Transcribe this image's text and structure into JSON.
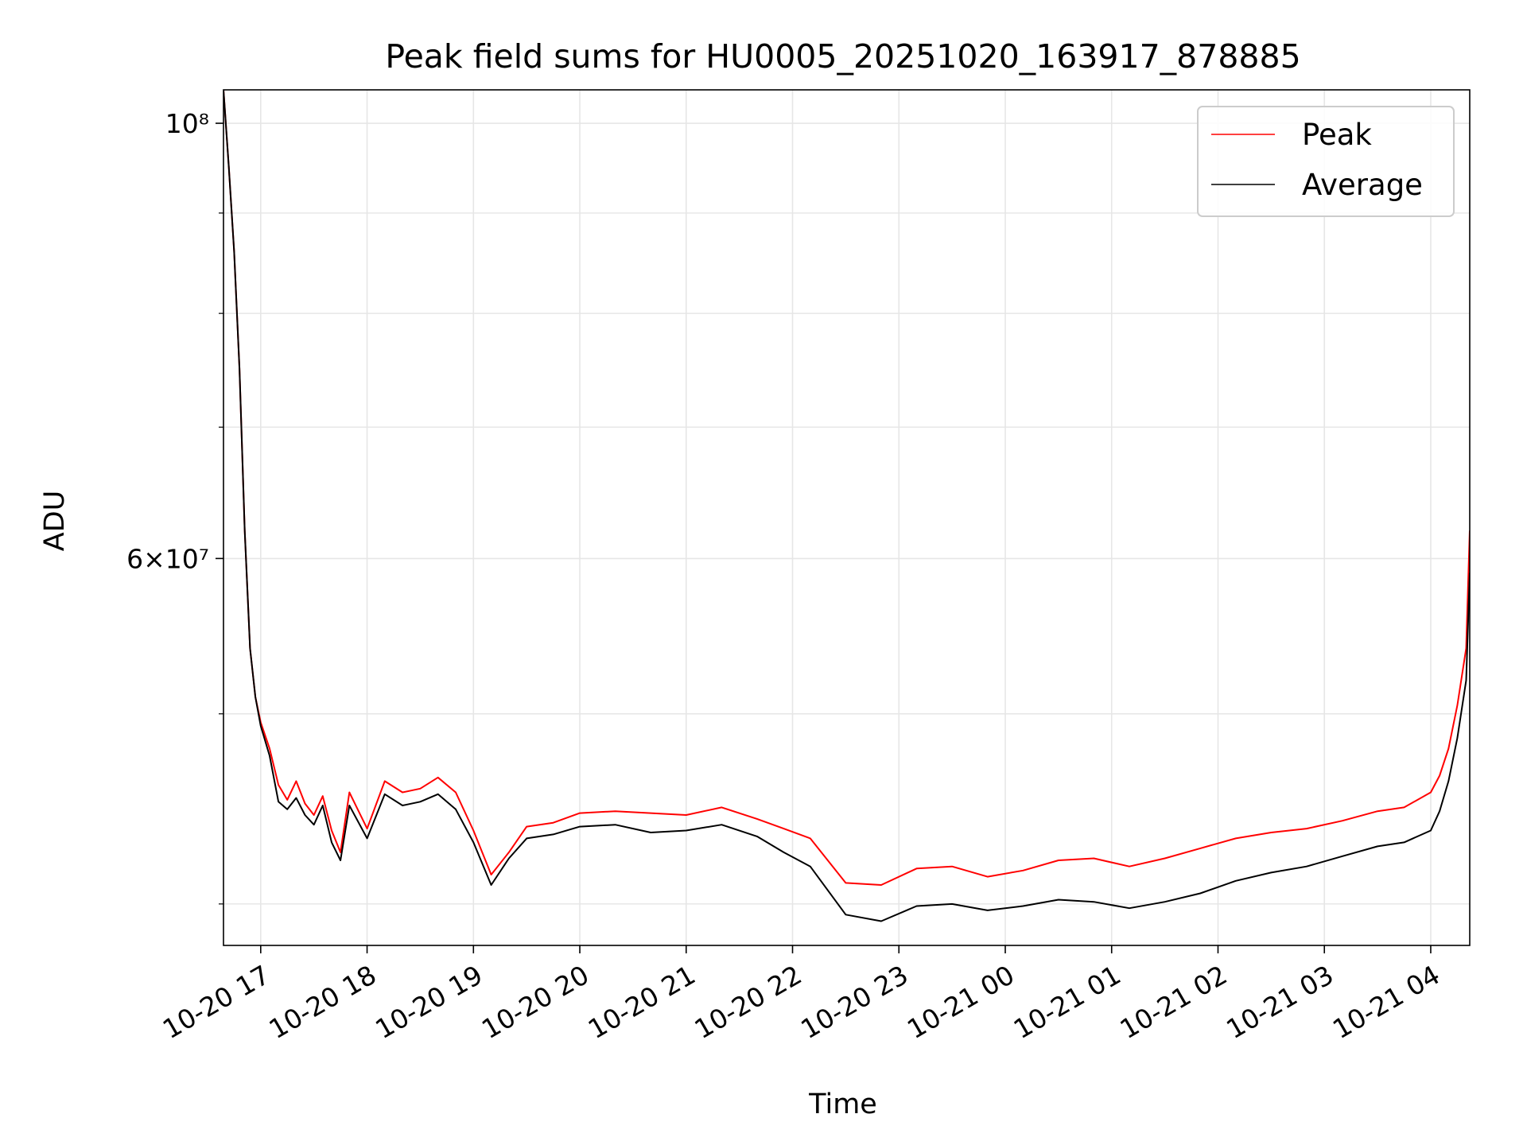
{
  "chart_data": {
    "type": "line",
    "title": "Peak field sums for HU0005_20251020_163917_878885",
    "xlabel": "Time",
    "ylabel": "ADU",
    "y_scale": "log",
    "grid": true,
    "legend_position": "top-right",
    "x_range": [
      "2025-10-20 16:39",
      "2025-10-21 04:22"
    ],
    "ylim": [
      38100000,
      104000000
    ],
    "x_ticks": [
      "10-20 17",
      "10-20 18",
      "10-20 19",
      "10-20 20",
      "10-20 21",
      "10-20 22",
      "10-20 23",
      "10-21 00",
      "10-21 01",
      "10-21 02",
      "10-21 03",
      "10-21 04"
    ],
    "x_tick_times": [
      "2025-10-20 17:00",
      "2025-10-20 18:00",
      "2025-10-20 19:00",
      "2025-10-20 20:00",
      "2025-10-20 21:00",
      "2025-10-20 22:00",
      "2025-10-20 23:00",
      "2025-10-21 00:00",
      "2025-10-21 01:00",
      "2025-10-21 02:00",
      "2025-10-21 03:00",
      "2025-10-21 04:00"
    ],
    "y_tick_values": [
      100000000,
      60000000
    ],
    "y_minor_tick_values": [
      40000000,
      50000000,
      70000000,
      80000000,
      90000000
    ],
    "series": [
      {
        "name": "Peak",
        "color": "#ff0000",
        "x": [
          "2025-10-20 16:39",
          "2025-10-20 16:42",
          "2025-10-20 16:45",
          "2025-10-20 16:48",
          "2025-10-20 16:51",
          "2025-10-20 16:54",
          "2025-10-20 16:57",
          "2025-10-20 17:00",
          "2025-10-20 17:05",
          "2025-10-20 17:10",
          "2025-10-20 17:15",
          "2025-10-20 17:20",
          "2025-10-20 17:25",
          "2025-10-20 17:30",
          "2025-10-20 17:35",
          "2025-10-20 17:40",
          "2025-10-20 17:45",
          "2025-10-20 17:50",
          "2025-10-20 18:00",
          "2025-10-20 18:10",
          "2025-10-20 18:20",
          "2025-10-20 18:30",
          "2025-10-20 18:40",
          "2025-10-20 18:50",
          "2025-10-20 19:00",
          "2025-10-20 19:10",
          "2025-10-20 19:20",
          "2025-10-20 19:30",
          "2025-10-20 19:45",
          "2025-10-20 20:00",
          "2025-10-20 20:20",
          "2025-10-20 20:40",
          "2025-10-20 21:00",
          "2025-10-20 21:20",
          "2025-10-20 21:40",
          "2025-10-20 21:55",
          "2025-10-20 22:10",
          "2025-10-20 22:30",
          "2025-10-20 22:50",
          "2025-10-20 23:10",
          "2025-10-20 23:30",
          "2025-10-20 23:50",
          "2025-10-21 00:10",
          "2025-10-21 00:30",
          "2025-10-21 00:50",
          "2025-10-21 01:10",
          "2025-10-21 01:30",
          "2025-10-21 01:50",
          "2025-10-21 02:10",
          "2025-10-21 02:30",
          "2025-10-21 02:50",
          "2025-10-21 03:10",
          "2025-10-21 03:30",
          "2025-10-21 03:45",
          "2025-10-21 04:00",
          "2025-10-21 04:05",
          "2025-10-21 04:10",
          "2025-10-21 04:15",
          "2025-10-21 04:20",
          "2025-10-21 04:22"
        ],
        "y": [
          104000000,
          95000000,
          86000000,
          75000000,
          62000000,
          54000000,
          51000000,
          49500000,
          48000000,
          46000000,
          45200000,
          46200000,
          45000000,
          44400000,
          45400000,
          43600000,
          42500000,
          45600000,
          43700000,
          46200000,
          45600000,
          45800000,
          46400000,
          45600000,
          43600000,
          41400000,
          42500000,
          43800000,
          44000000,
          44500000,
          44600000,
          44500000,
          44400000,
          44800000,
          44200000,
          43700000,
          43200000,
          41000000,
          40900000,
          41700000,
          41800000,
          41300000,
          41600000,
          42100000,
          42200000,
          41800000,
          42200000,
          42700000,
          43200000,
          43500000,
          43700000,
          44100000,
          44600000,
          44800000,
          45600000,
          46500000,
          48000000,
          50500000,
          54000000,
          62000000
        ]
      },
      {
        "name": "Average",
        "color": "#000000",
        "x": [
          "2025-10-20 16:39",
          "2025-10-20 16:42",
          "2025-10-20 16:45",
          "2025-10-20 16:48",
          "2025-10-20 16:51",
          "2025-10-20 16:54",
          "2025-10-20 16:57",
          "2025-10-20 17:00",
          "2025-10-20 17:05",
          "2025-10-20 17:10",
          "2025-10-20 17:15",
          "2025-10-20 17:20",
          "2025-10-20 17:25",
          "2025-10-20 17:30",
          "2025-10-20 17:35",
          "2025-10-20 17:40",
          "2025-10-20 17:45",
          "2025-10-20 17:50",
          "2025-10-20 18:00",
          "2025-10-20 18:10",
          "2025-10-20 18:20",
          "2025-10-20 18:30",
          "2025-10-20 18:40",
          "2025-10-20 18:50",
          "2025-10-20 19:00",
          "2025-10-20 19:10",
          "2025-10-20 19:20",
          "2025-10-20 19:30",
          "2025-10-20 19:45",
          "2025-10-20 20:00",
          "2025-10-20 20:20",
          "2025-10-20 20:40",
          "2025-10-20 21:00",
          "2025-10-20 21:20",
          "2025-10-20 21:40",
          "2025-10-20 21:55",
          "2025-10-20 22:10",
          "2025-10-20 22:30",
          "2025-10-20 22:50",
          "2025-10-20 23:10",
          "2025-10-20 23:30",
          "2025-10-20 23:50",
          "2025-10-21 00:10",
          "2025-10-21 00:30",
          "2025-10-21 00:50",
          "2025-10-21 01:10",
          "2025-10-21 01:30",
          "2025-10-21 01:50",
          "2025-10-21 02:10",
          "2025-10-21 02:30",
          "2025-10-21 02:50",
          "2025-10-21 03:10",
          "2025-10-21 03:30",
          "2025-10-21 03:45",
          "2025-10-21 04:00",
          "2025-10-21 04:05",
          "2025-10-21 04:10",
          "2025-10-21 04:15",
          "2025-10-21 04:20",
          "2025-10-21 04:22"
        ],
        "y": [
          104000000,
          95000000,
          86000000,
          75000000,
          62000000,
          54000000,
          51000000,
          49300000,
          47600000,
          45100000,
          44700000,
          45300000,
          44400000,
          43900000,
          44900000,
          43000000,
          42100000,
          44900000,
          43200000,
          45500000,
          44900000,
          45100000,
          45500000,
          44700000,
          43000000,
          40900000,
          42200000,
          43200000,
          43400000,
          43800000,
          43900000,
          43500000,
          43600000,
          43900000,
          43300000,
          42500000,
          41800000,
          39500000,
          39200000,
          39900000,
          40000000,
          39700000,
          39900000,
          40200000,
          40100000,
          39800000,
          40100000,
          40500000,
          41100000,
          41500000,
          41800000,
          42300000,
          42800000,
          43000000,
          43600000,
          44600000,
          46200000,
          48600000,
          52000000,
          59000000
        ]
      }
    ]
  }
}
